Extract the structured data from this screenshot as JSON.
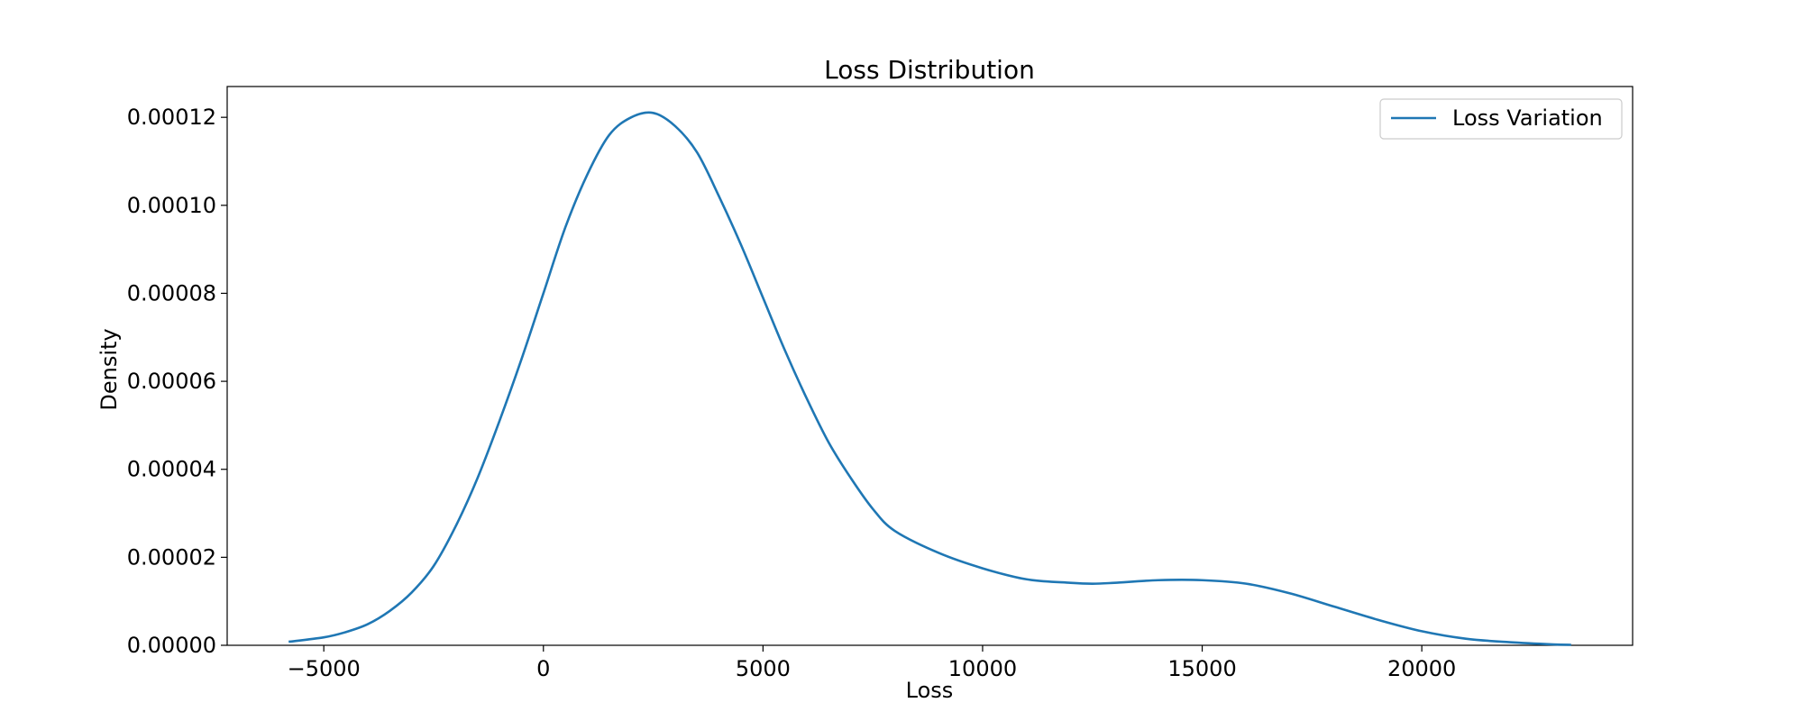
{
  "chart_data": {
    "type": "line",
    "title": "Loss Distribution",
    "xlabel": "Loss",
    "ylabel": "Density",
    "xlim": [
      -7200,
      24800
    ],
    "ylim": [
      0,
      0.000127
    ],
    "x_ticks": [
      -5000,
      0,
      5000,
      10000,
      15000,
      20000
    ],
    "x_tick_labels": [
      "−5000",
      "0",
      "5000",
      "10000",
      "15000",
      "20000"
    ],
    "y_ticks": [
      0,
      2e-05,
      4e-05,
      6e-05,
      8e-05,
      0.0001,
      0.00012
    ],
    "y_tick_labels": [
      "0.00000",
      "0.00002",
      "0.00004",
      "0.00006",
      "0.00008",
      "0.00010",
      "0.00012"
    ],
    "grid": false,
    "legend": {
      "position": "top-right",
      "entries": [
        "Loss Variation"
      ]
    },
    "series": [
      {
        "name": "Loss Variation",
        "color": "#1f77b4",
        "x": [
          -5800,
          -5000,
          -4500,
          -4000,
          -3500,
          -3000,
          -2500,
          -2000,
          -1500,
          -1000,
          -500,
          0,
          500,
          1000,
          1500,
          2000,
          2500,
          3000,
          3500,
          4000,
          4500,
          5000,
          5500,
          6000,
          6500,
          7000,
          7500,
          8000,
          9000,
          10000,
          11000,
          12000,
          12500,
          13000,
          14000,
          15000,
          16000,
          17000,
          18000,
          19000,
          20000,
          21000,
          22000,
          23000,
          23400
        ],
        "y": [
          8e-07,
          1.8e-06,
          3e-06,
          4.8e-06,
          7.8e-06,
          1.2e-05,
          1.8e-05,
          2.7e-05,
          3.8e-05,
          5.1e-05,
          6.5e-05,
          8e-05,
          9.5e-05,
          0.000107,
          0.000116,
          0.00012,
          0.000121,
          0.000118,
          0.000112,
          0.000102,
          9.1e-05,
          7.9e-05,
          6.7e-05,
          5.6e-05,
          4.6e-05,
          3.8e-05,
          3.1e-05,
          2.6e-05,
          2.1e-05,
          1.75e-05,
          1.5e-05,
          1.42e-05,
          1.4e-05,
          1.42e-05,
          1.48e-05,
          1.48e-05,
          1.4e-05,
          1.18e-05,
          8.8e-06,
          5.8e-06,
          3.2e-06,
          1.5e-06,
          7e-07,
          2e-07,
          1e-07
        ]
      }
    ]
  }
}
